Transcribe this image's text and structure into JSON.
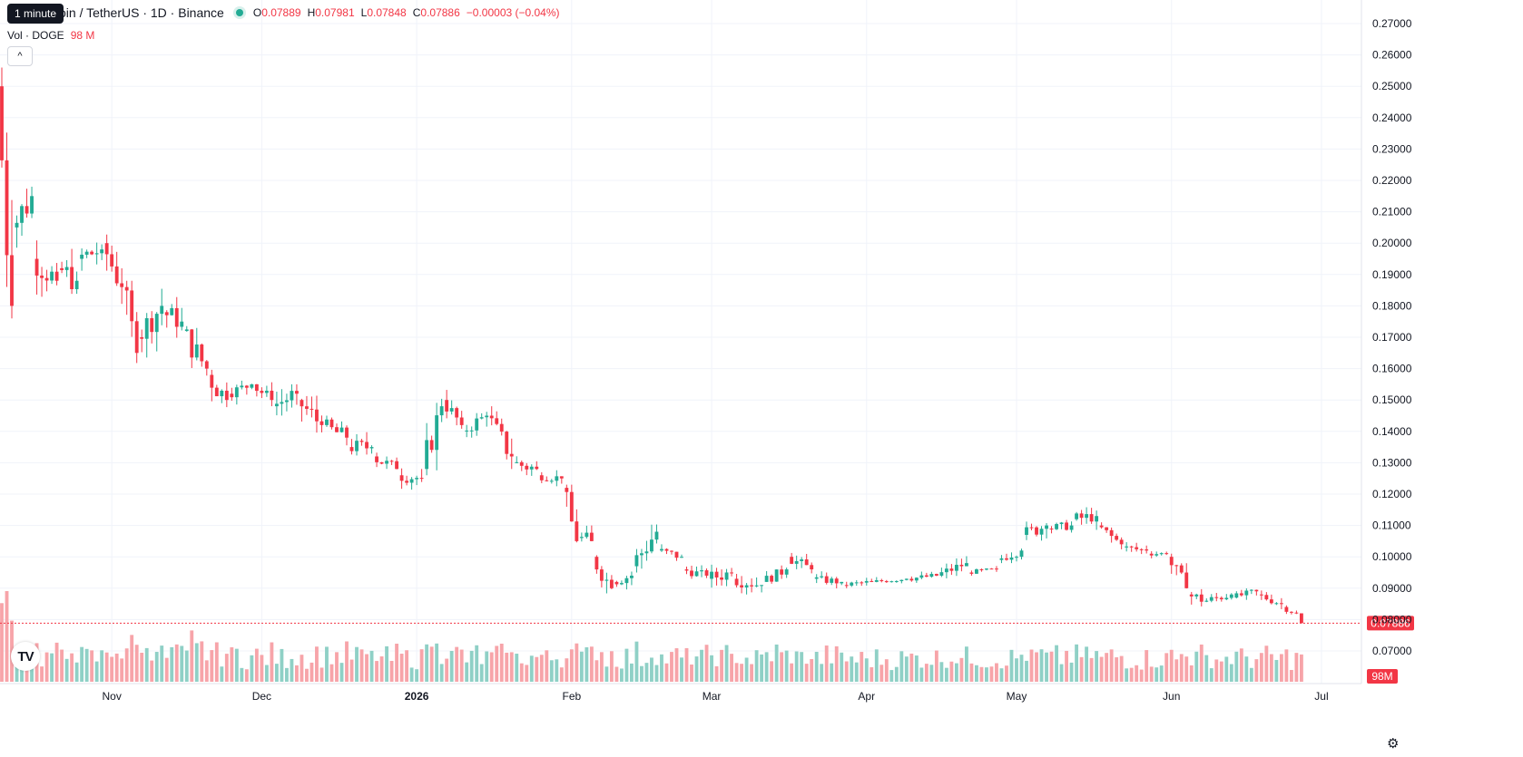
{
  "header": {
    "tooltip": "1 minute",
    "symbol": "oin / TetherUS · 1D · Binance",
    "open_label": "O",
    "open": "0.07889",
    "high_label": "H",
    "high": "0.07981",
    "low_label": "L",
    "low": "0.07848",
    "close_label": "C",
    "close": "0.07886",
    "change": "−0.00003 (−0.04%)"
  },
  "volume_legend": {
    "label": "Vol · DOGE",
    "value": "98 M"
  },
  "buttons": {
    "collapse": "^"
  },
  "logo": "TV",
  "icons": {
    "settings": "⚙"
  },
  "colors": {
    "up": "#22ab94",
    "down": "#f23645",
    "up_vol": "#8fd0c6",
    "down_vol": "#f7a4a9",
    "grid": "#f0f3fa",
    "last_price_bg": "#f23645"
  },
  "chart_data": {
    "type": "candlestick",
    "title": "oin / TetherUS · 1D · Binance",
    "y_axis_ticks": [
      "0.27000",
      "0.26000",
      "0.25000",
      "0.24000",
      "0.23000",
      "0.22000",
      "0.21000",
      "0.20000",
      "0.19000",
      "0.18000",
      "0.17000",
      "0.16000",
      "0.15000",
      "0.14000",
      "0.13000",
      "0.12000",
      "0.11000",
      "0.10000",
      "0.09000",
      "0.08000",
      "0.07000"
    ],
    "ylim": [
      0.0665,
      0.2725
    ],
    "x_axis_ticks": [
      "Nov",
      "Dec",
      "2026",
      "Feb",
      "Mar",
      "Apr",
      "May",
      "Jun",
      "Jul"
    ],
    "x_axis_dates": [
      "2025-11-01",
      "2025-12-01",
      "2026-01-01",
      "2026-02-01",
      "2026-03-01",
      "2026-04-01",
      "2026-05-01",
      "2026-06-01",
      "2026-07-01"
    ],
    "xlim": [
      "2025-10-10",
      "2026-07-09"
    ],
    "last_price": "0.07886",
    "last_volume": "98M",
    "close_path": [
      [
        "2025-10-10",
        0.25,
        0.18,
        0.256,
        0.176
      ],
      [
        "2025-10-13",
        0.205,
        0.215,
        0.218,
        0.185
      ],
      [
        "2025-10-17",
        0.195,
        0.188,
        0.205,
        0.18
      ],
      [
        "2025-10-22",
        0.192,
        0.188,
        0.2,
        0.175
      ],
      [
        "2025-10-26",
        0.195,
        0.198,
        0.205,
        0.185
      ],
      [
        "2025-10-31",
        0.2,
        0.186,
        0.205,
        0.18
      ],
      [
        "2025-11-04",
        0.186,
        0.165,
        0.188,
        0.152
      ],
      [
        "2025-11-07",
        0.17,
        0.18,
        0.187,
        0.162
      ],
      [
        "2025-11-12",
        0.178,
        0.175,
        0.185,
        0.165
      ],
      [
        "2025-11-16",
        0.172,
        0.16,
        0.175,
        0.15
      ],
      [
        "2025-11-21",
        0.158,
        0.15,
        0.162,
        0.14
      ],
      [
        "2025-11-25",
        0.152,
        0.155,
        0.158,
        0.148
      ],
      [
        "2025-11-30",
        0.155,
        0.15,
        0.157,
        0.145
      ],
      [
        "2025-12-04",
        0.148,
        0.152,
        0.155,
        0.138
      ],
      [
        "2025-12-09",
        0.15,
        0.142,
        0.155,
        0.135
      ],
      [
        "2025-12-14",
        0.142,
        0.138,
        0.145,
        0.13
      ],
      [
        "2025-12-19",
        0.135,
        0.135,
        0.14,
        0.126
      ],
      [
        "2025-12-24",
        0.132,
        0.128,
        0.135,
        0.123
      ],
      [
        "2025-12-29",
        0.126,
        0.125,
        0.13,
        0.118
      ],
      [
        "2026-01-03",
        0.128,
        0.148,
        0.153,
        0.126
      ],
      [
        "2026-01-07",
        0.15,
        0.142,
        0.154,
        0.14
      ],
      [
        "2026-01-11",
        0.14,
        0.145,
        0.151,
        0.138
      ],
      [
        "2026-01-16",
        0.145,
        0.132,
        0.148,
        0.128
      ],
      [
        "2026-01-21",
        0.13,
        0.128,
        0.135,
        0.121
      ],
      [
        "2026-01-26",
        0.126,
        0.125,
        0.128,
        0.12
      ],
      [
        "2026-01-31",
        0.122,
        0.105,
        0.123,
        0.098
      ],
      [
        "2026-02-03",
        0.106,
        0.105,
        0.11,
        0.095
      ],
      [
        "2026-02-06",
        0.1,
        0.09,
        0.102,
        0.085
      ],
      [
        "2026-02-10",
        0.092,
        0.094,
        0.098,
        0.088
      ],
      [
        "2026-02-14",
        0.097,
        0.108,
        0.117,
        0.095
      ],
      [
        "2026-02-19",
        0.102,
        0.1,
        0.104,
        0.095
      ],
      [
        "2026-02-24",
        0.096,
        0.094,
        0.1,
        0.092
      ],
      [
        "2026-03-01",
        0.093,
        0.095,
        0.103,
        0.09
      ],
      [
        "2026-03-06",
        0.093,
        0.091,
        0.1,
        0.088
      ],
      [
        "2026-03-12",
        0.092,
        0.096,
        0.099,
        0.09
      ],
      [
        "2026-03-17",
        0.1,
        0.096,
        0.104,
        0.094
      ],
      [
        "2026-03-22",
        0.093,
        0.092,
        0.096,
        0.089
      ],
      [
        "2026-03-28",
        0.091,
        0.092,
        0.095,
        0.09
      ],
      [
        "2026-04-03",
        0.092,
        0.093,
        0.094,
        0.09
      ],
      [
        "2026-04-10",
        0.093,
        0.094,
        0.096,
        0.091
      ],
      [
        "2026-04-16",
        0.094,
        0.098,
        0.102,
        0.093
      ],
      [
        "2026-04-22",
        0.095,
        0.096,
        0.098,
        0.094
      ],
      [
        "2026-04-28",
        0.099,
        0.102,
        0.106,
        0.098
      ],
      [
        "2026-05-03",
        0.107,
        0.11,
        0.117,
        0.104
      ],
      [
        "2026-05-08",
        0.109,
        0.11,
        0.114,
        0.106
      ],
      [
        "2026-05-13",
        0.112,
        0.113,
        0.119,
        0.108
      ],
      [
        "2026-05-18",
        0.11,
        0.104,
        0.111,
        0.101
      ],
      [
        "2026-05-23",
        0.103,
        0.102,
        0.106,
        0.099
      ],
      [
        "2026-05-28",
        0.101,
        0.101,
        0.102,
        0.098
      ],
      [
        "2026-06-01",
        0.1,
        0.09,
        0.101,
        0.086
      ],
      [
        "2026-06-05",
        0.088,
        0.086,
        0.09,
        0.079
      ],
      [
        "2026-06-09",
        0.086,
        0.088,
        0.091,
        0.083
      ],
      [
        "2026-06-14",
        0.087,
        0.089,
        0.092,
        0.086
      ],
      [
        "2026-06-19",
        0.088,
        0.085,
        0.09,
        0.083
      ],
      [
        "2026-06-24",
        0.084,
        0.082,
        0.085,
        0.08
      ],
      [
        "2026-06-27",
        0.08199,
        0.07886,
        0.082,
        0.0785
      ]
    ]
  }
}
